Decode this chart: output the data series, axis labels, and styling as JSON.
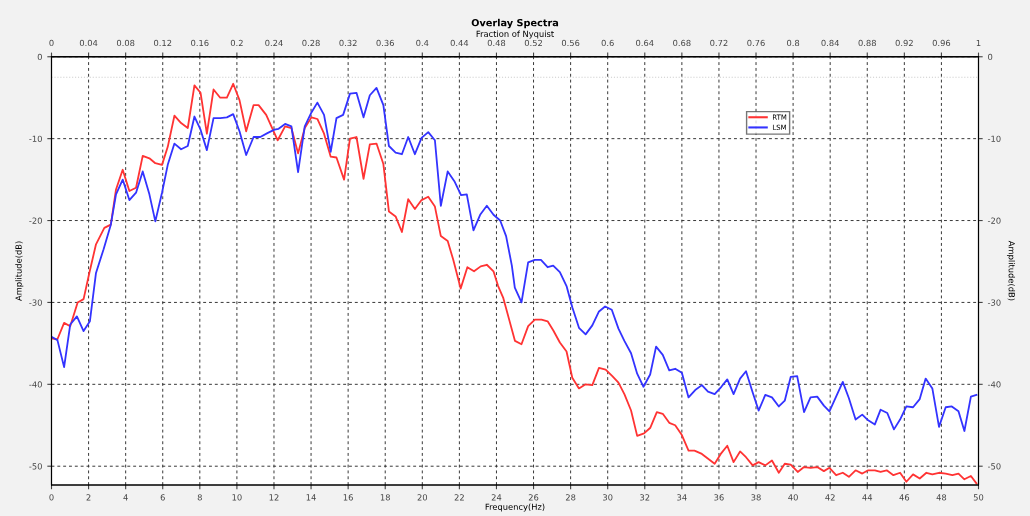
{
  "chart_data": {
    "type": "line",
    "title": "Overlay Spectra",
    "xlabel": "Frequency(Hz)",
    "ylabel": "Amplitude(dB)",
    "y2label": "Amplitude(dB)",
    "x2label": "Fraction of Nyquist",
    "xlim": [
      0,
      50
    ],
    "xticks": [
      0,
      2,
      4,
      6,
      8,
      10,
      12,
      14,
      16,
      18,
      20,
      22,
      24,
      26,
      28,
      30,
      32,
      34,
      36,
      38,
      40,
      42,
      44,
      46,
      48,
      50
    ],
    "x2lim": [
      0,
      1
    ],
    "x2ticks": [
      0,
      0.04,
      0.08,
      0.12,
      0.16,
      0.2,
      0.24,
      0.28,
      0.32,
      0.36,
      0.4,
      0.44,
      0.48,
      0.52,
      0.56,
      0.6,
      0.64,
      0.68,
      0.72,
      0.76,
      0.8,
      0.84,
      0.88,
      0.92,
      0.96,
      1
    ],
    "ylim": [
      -52.3,
      0
    ],
    "yticks": [
      0,
      -10,
      -20,
      -30,
      -40,
      -50
    ],
    "y2lim": [
      -52.3,
      0
    ],
    "y2ticks": [
      0,
      -10,
      -20,
      -30,
      -40,
      -50
    ],
    "grid": true,
    "legend": "top right",
    "marker": "none",
    "line_style": "solid",
    "ref_lines": [
      {
        "axis": "y",
        "value": -2.5,
        "label": null,
        "color": "#cccccc",
        "line_style": "dotted"
      }
    ],
    "series": [
      {
        "name": "RTM",
        "color": "#ff3333",
        "x": [
          0,
          0.32,
          0.68,
          1.01,
          1.41,
          1.73,
          2.04,
          2.4,
          2.85,
          3.2,
          3.48,
          3.84,
          4.2,
          4.56,
          4.92,
          5.28,
          5.6,
          5.96,
          6.27,
          6.63,
          6.99,
          7.35,
          7.71,
          8.04,
          8.38,
          8.74,
          9.1,
          9.46,
          9.8,
          10.14,
          10.5,
          10.9,
          11.17,
          11.58,
          12.2,
          12.6,
          12.94,
          13.3,
          13.66,
          14.02,
          14.34,
          14.7,
          15.06,
          15.37,
          15.78,
          16.1,
          16.45,
          16.83,
          17.17,
          17.53,
          17.9,
          18.2,
          18.56,
          18.9,
          19.24,
          19.6,
          19.96,
          20.32,
          20.68,
          21.0,
          21.37,
          21.67,
          22.07,
          22.43,
          22.79,
          23.15,
          23.48,
          23.84,
          24.09,
          24.36,
          25.0,
          25.35,
          25.71,
          26.07,
          26.43,
          26.76,
          27.06,
          27.42,
          27.78,
          28.09,
          28.45,
          28.81,
          29.17,
          29.53,
          29.89,
          30.25,
          30.58,
          30.9,
          31.26,
          31.59,
          31.96,
          32.3,
          32.65,
          32.97,
          33.32,
          33.64,
          34.0,
          34.36,
          34.68,
          35.08,
          35.77,
          36.13,
          36.45,
          36.79,
          37.14,
          37.46,
          37.82,
          38.14,
          38.5,
          38.86,
          39.23,
          39.55,
          39.87,
          40.25,
          40.59,
          40.94,
          41.3,
          41.66,
          41.96,
          42.32,
          42.68,
          43.01,
          43.37,
          43.73,
          44.05,
          44.41,
          44.72,
          45.05,
          45.41,
          45.77,
          46.11,
          46.47,
          46.83,
          47.19,
          47.51,
          47.87,
          48.23,
          48.59,
          48.92,
          49.24,
          49.59,
          49.89
        ],
        "values": [
          -34.4,
          -34.5,
          -32.5,
          -32.9,
          -30,
          -29.6,
          -26.4,
          -22.9,
          -20.9,
          -20.5,
          -16.2,
          -13.8,
          -16.4,
          -16,
          -12.1,
          -12.4,
          -13,
          -13.2,
          -11,
          -7.2,
          -8.1,
          -8.7,
          -3.5,
          -4.4,
          -9.4,
          -4,
          -5,
          -5,
          -3.3,
          -5.3,
          -9.1,
          -5.9,
          -5.9,
          -7.1,
          -10.2,
          -8.5,
          -8.7,
          -11.8,
          -8.7,
          -7.4,
          -7.6,
          -9.4,
          -12.2,
          -12.3,
          -15,
          -10,
          -9.8,
          -14.9,
          -10.7,
          -10.6,
          -13.1,
          -18.9,
          -19.5,
          -21.4,
          -17.4,
          -18.6,
          -17.5,
          -17.1,
          -18.3,
          -21.9,
          -22.5,
          -24.8,
          -28.3,
          -25.7,
          -26.2,
          -25.6,
          -25.4,
          -26.2,
          -28,
          -29.4,
          -34.7,
          -35.1,
          -32.9,
          -32.1,
          -32.1,
          -32.3,
          -33.4,
          -34.9,
          -36,
          -39.2,
          -40.5,
          -40,
          -40.1,
          -38,
          -38.2,
          -39,
          -39.8,
          -41.2,
          -43.2,
          -46.3,
          -46,
          -45.3,
          -43.4,
          -43.6,
          -44.7,
          -45,
          -46.2,
          -48.1,
          -48.1,
          -48.5,
          -49.7,
          -48.4,
          -47.5,
          -49.5,
          -48.2,
          -48.9,
          -49.9,
          -49.5,
          -49.9,
          -49.3,
          -50.8,
          -49.7,
          -49.8,
          -50.7,
          -50.1,
          -50.2,
          -50.1,
          -50.6,
          -50.2,
          -51.1,
          -50.8,
          -51.3,
          -50.5,
          -50.9,
          -50.5,
          -50.5,
          -50.7,
          -50.5,
          -51.1,
          -50.8,
          -51.9,
          -51,
          -51.5,
          -50.8,
          -51,
          -50.8,
          -50.9,
          -51.1,
          -50.9,
          -51.6,
          -51.2,
          -52.1
        ]
      },
      {
        "name": "LSM",
        "color": "#3333ff",
        "x": [
          0,
          0.32,
          0.68,
          1.01,
          1.37,
          1.73,
          2.07,
          2.4,
          2.81,
          3.2,
          3.48,
          3.84,
          4.2,
          4.56,
          4.92,
          5.28,
          5.6,
          5.96,
          6.27,
          6.63,
          6.99,
          7.35,
          7.71,
          8.04,
          8.38,
          8.74,
          9.1,
          9.46,
          9.8,
          10.14,
          10.5,
          10.9,
          11.26,
          11.67,
          12.03,
          12.25,
          12.6,
          12.94,
          13.3,
          13.66,
          14.02,
          14.34,
          14.7,
          15.06,
          15.37,
          15.73,
          16.1,
          16.45,
          16.83,
          17.17,
          17.53,
          17.9,
          18.2,
          18.56,
          18.9,
          19.24,
          19.6,
          19.96,
          20.32,
          20.68,
          21.0,
          21.37,
          21.73,
          22.09,
          22.4,
          22.76,
          23.12,
          23.48,
          23.84,
          24.2,
          24.52,
          24.83,
          24.99,
          25.35,
          25.71,
          26.07,
          26.4,
          26.76,
          27.06,
          27.42,
          27.78,
          28.09,
          28.45,
          28.81,
          29.17,
          29.53,
          29.86,
          30.22,
          30.58,
          30.9,
          31.26,
          31.59,
          31.93,
          32.29,
          32.61,
          32.97,
          33.32,
          33.64,
          34.0,
          34.36,
          34.72,
          35.08,
          35.41,
          35.77,
          36.13,
          36.45,
          36.79,
          37.14,
          37.46,
          37.82,
          38.14,
          38.5,
          38.86,
          39.23,
          39.55,
          39.87,
          40.22,
          40.59,
          40.94,
          41.3,
          41.66,
          41.96,
          42.32,
          42.68,
          43.01,
          43.37,
          43.73,
          44.05,
          44.41,
          44.72,
          45.08,
          45.44,
          45.77,
          46.11,
          46.47,
          46.83,
          47.15,
          47.51,
          47.87,
          48.23,
          48.56,
          48.92,
          49.24,
          49.59,
          49.89
        ],
        "values": [
          -34.2,
          -34.6,
          -37.9,
          -32.7,
          -31.7,
          -33.5,
          -32.3,
          -26.4,
          -23.5,
          -20.5,
          -16.8,
          -15,
          -17.5,
          -16.6,
          -14,
          -16.8,
          -20.1,
          -16.6,
          -13.2,
          -10.6,
          -11.3,
          -10.9,
          -7.3,
          -8.9,
          -11.4,
          -7.5,
          -7.5,
          -7.4,
          -7,
          -9.1,
          -12,
          -9.8,
          -9.8,
          -9.3,
          -8.9,
          -8.8,
          -8.2,
          -8.5,
          -14.1,
          -8.5,
          -6.8,
          -5.6,
          -7.1,
          -11.6,
          -7.5,
          -7.1,
          -4.5,
          -4.4,
          -7.4,
          -4.7,
          -3.8,
          -5.9,
          -10.9,
          -11.7,
          -11.9,
          -9.8,
          -11.9,
          -9.9,
          -9.2,
          -10.2,
          -18.2,
          -14,
          -15.2,
          -16.9,
          -16.8,
          -21.2,
          -19.3,
          -18.2,
          -19.3,
          -20,
          -21.9,
          -25.5,
          -28.2,
          -30,
          -25.1,
          -24.8,
          -24.8,
          -25.7,
          -25.5,
          -26.3,
          -28,
          -30.6,
          -33.1,
          -33.9,
          -32.8,
          -31.1,
          -30.5,
          -30.9,
          -33.2,
          -34.7,
          -36.2,
          -38.7,
          -40.3,
          -38.8,
          -35.4,
          -36.4,
          -38.3,
          -38.1,
          -38.6,
          -41.6,
          -40.7,
          -40.1,
          -40.9,
          -41.2,
          -40.3,
          -39.4,
          -41.2,
          -39.3,
          -38.4,
          -41,
          -43.2,
          -41.3,
          -41.6,
          -42.7,
          -42,
          -39.1,
          -39,
          -43.4,
          -41.6,
          -41.5,
          -42.6,
          -43.3,
          -41.5,
          -39.7,
          -41.7,
          -44.3,
          -43.7,
          -44.4,
          -44.9,
          -43.1,
          -43.5,
          -45.5,
          -44.3,
          -42.7,
          -42.8,
          -41.8,
          -39.3,
          -40.5,
          -45.2,
          -42.8,
          -42.7,
          -43.3,
          -45.7,
          -41.5,
          -41.3
        ]
      }
    ]
  }
}
